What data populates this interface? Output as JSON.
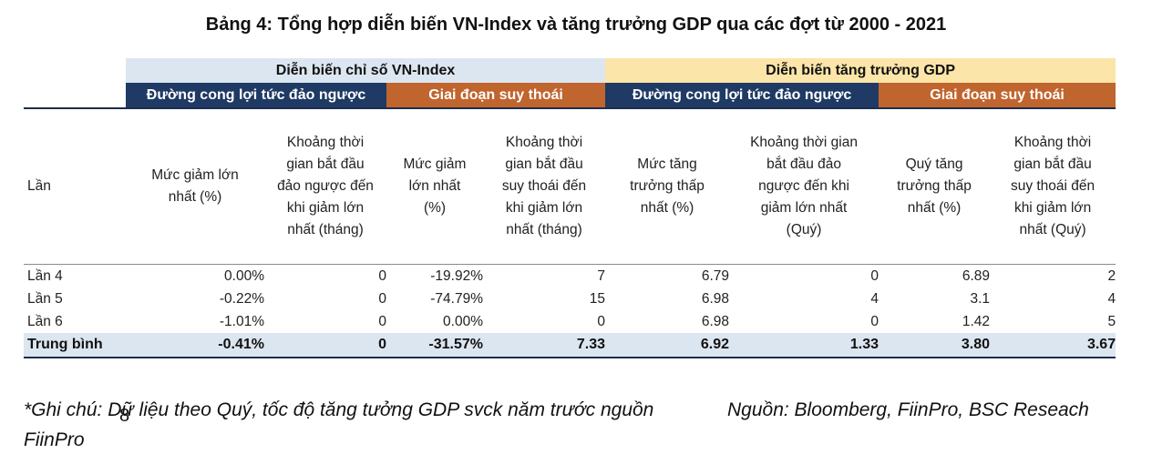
{
  "title": "Bảng 4: Tổng hợp diễn biến VN-Index và tăng trưởng GDP qua các đợt từ 2000 - 2021",
  "groups": {
    "vnindex": "Diễn biến chỉ số VN-Index",
    "gdp": "Diễn biến tăng trưởng GDP"
  },
  "subgroups": {
    "vn_curve": "Đường cong lợi tức đảo ngược",
    "vn_recession": "Giai đoạn suy thoái",
    "gdp_curve": "Đường cong lợi tức đảo ngược",
    "gdp_recession": "Giai đoạn suy thoái"
  },
  "columns": [
    [
      "Lần"
    ],
    [
      "Mức giảm lớn",
      "nhất (%)"
    ],
    [
      "Khoảng thời",
      "gian bắt đầu",
      "đảo ngược đến",
      "khi giảm lớn",
      "nhất (tháng)"
    ],
    [
      "Mức giảm",
      "lớn nhất",
      "(%)"
    ],
    [
      "Khoảng thời",
      "gian bắt đầu",
      "suy thoái đến",
      "khi giảm lớn",
      "nhất (tháng)"
    ],
    [
      "Mức tăng",
      "trưởng thấp",
      "nhất (%)"
    ],
    [
      "Khoảng thời gian",
      "bắt đầu đảo",
      "ngược đến khi",
      "giảm lớn nhất",
      "(Quý)"
    ],
    [
      "Quý tăng",
      "trưởng thấp",
      "nhất (%)"
    ],
    [
      "Khoảng thời",
      "gian bắt đầu",
      "suy thoái đến",
      "khi giảm lớn",
      "nhất (Quý)"
    ]
  ],
  "rows": [
    [
      "Lần 4",
      "0.00%",
      "0",
      "-19.92%",
      "7",
      "6.79",
      "0",
      "6.89",
      "2"
    ],
    [
      "Lần 5",
      "-0.22%",
      "0",
      "-74.79%",
      "15",
      "6.98",
      "4",
      "3.1",
      "4"
    ],
    [
      "Lần 6",
      "-1.01%",
      "0",
      "0.00%",
      "0",
      "6.98",
      "0",
      "1.42",
      "5"
    ]
  ],
  "average": [
    "Trung bình",
    "-0.41%",
    "0",
    "-31.57%",
    "7.33",
    "6.92",
    "1.33",
    "3.80",
    "3.67"
  ],
  "note": "*Ghi chú: Dữ liệu theo Quý, tốc độ tăng tưởng GDP svck năm trước nguồn FiinPro",
  "source": "Nguồn: Bloomberg, FiinPro,  BSC Reseach",
  "page_number": "8",
  "colors": {
    "light_blue": "#dce6f1",
    "light_yellow": "#fbe5a8",
    "navy": "#1f3a64",
    "rust": "#c0652e"
  }
}
